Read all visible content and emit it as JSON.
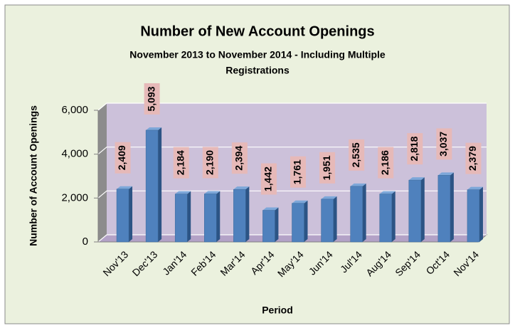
{
  "chart_data": {
    "type": "bar",
    "title": "Number of New Account Openings",
    "subtitle": [
      "November 2013 to November 2014 - Including Multiple",
      "Registrations"
    ],
    "x_label": "Period",
    "y_label": "Number of Account Openings",
    "categories": [
      "Nov'13",
      "Dec'13",
      "Jan'14",
      "Feb'14",
      "Mar'14",
      "Apr'14",
      "May'14",
      "Jun'14",
      "Jul'14",
      "Aug'14",
      "Sep'14",
      "Oct'14",
      "Nov'14"
    ],
    "values": [
      2409,
      5093,
      2184,
      2190,
      2394,
      1442,
      1761,
      1951,
      2535,
      2186,
      2818,
      3037,
      2379
    ],
    "value_labels": [
      "2,409",
      "5,093",
      "2,184",
      "2,190",
      "2,394",
      "1,442",
      "1,761",
      "1,951",
      "2,535",
      "2,186",
      "2,818",
      "3,037",
      "2,379"
    ],
    "color": "#4f81bd",
    "ylim": [
      0,
      6000
    ],
    "yticks": [
      0,
      {
        "value": 2000,
        "label": "2,000"
      },
      {
        "value": 4000,
        "label": "4,000"
      },
      {
        "value": 6000,
        "label": "6,000"
      }
    ],
    "grid": true
  }
}
